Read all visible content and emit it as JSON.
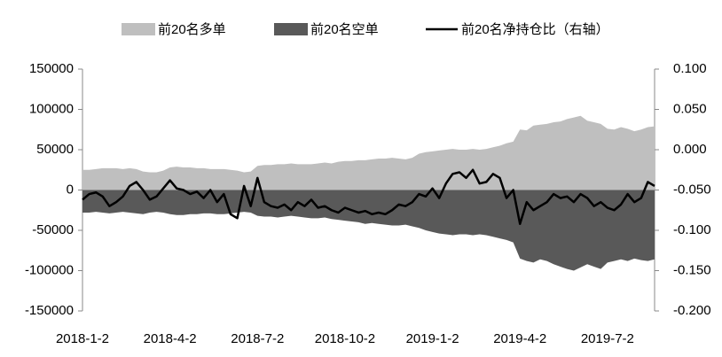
{
  "chart_data": {
    "type": "area_line",
    "categories": [
      "2018-1-2",
      null,
      null,
      null,
      null,
      null,
      null,
      null,
      null,
      null,
      null,
      null,
      null,
      "2018-4-2",
      null,
      null,
      null,
      null,
      null,
      null,
      null,
      null,
      null,
      null,
      null,
      null,
      "2018-7-2",
      null,
      null,
      null,
      null,
      null,
      null,
      null,
      null,
      null,
      null,
      null,
      null,
      "2018-10-2",
      null,
      null,
      null,
      null,
      null,
      null,
      null,
      null,
      null,
      null,
      null,
      null,
      "2019-1-2",
      null,
      null,
      null,
      null,
      null,
      null,
      null,
      null,
      null,
      null,
      null,
      null,
      "2019-4-2",
      null,
      null,
      null,
      null,
      null,
      null,
      null,
      null,
      null,
      null,
      null,
      null,
      "2019-7-2",
      null,
      null,
      null,
      null,
      null,
      null,
      null
    ],
    "ylim": [
      -150000,
      150000
    ],
    "yticks": [
      -150000,
      -100000,
      -50000,
      0,
      50000,
      100000,
      150000
    ],
    "y2lim": [
      -0.2,
      0.1
    ],
    "y2ticks": [
      {
        "value": -0.2,
        "label": "-0.200"
      },
      {
        "value": -0.15,
        "label": "-0.150"
      },
      {
        "value": -0.1,
        "label": "-0.100"
      },
      {
        "value": -0.05,
        "label": "-0.050"
      },
      {
        "value": 0,
        "label": "0.000"
      },
      {
        "value": 0.05,
        "label": "0.050"
      },
      {
        "value": 0.1,
        "label": "0.100"
      }
    ],
    "legend": "top",
    "series": [
      {
        "name": "前20名多单",
        "color": "#bfbfbf",
        "kind": "area",
        "values": [
          25000,
          25000,
          26000,
          27000,
          27000,
          27000,
          26000,
          27000,
          26000,
          23000,
          22000,
          22000,
          24000,
          28000,
          29000,
          28000,
          28000,
          27000,
          27000,
          26000,
          26000,
          26000,
          25000,
          24000,
          22000,
          23000,
          30000,
          31000,
          31000,
          32000,
          32000,
          33000,
          32000,
          32000,
          32000,
          33000,
          34000,
          33000,
          35000,
          36000,
          36000,
          37000,
          37000,
          38000,
          39000,
          39000,
          40000,
          39000,
          38000,
          40000,
          45000,
          47000,
          48000,
          49000,
          50000,
          51000,
          50000,
          50000,
          51000,
          50000,
          51000,
          53000,
          55000,
          58000,
          60000,
          75000,
          74000,
          80000,
          81000,
          82000,
          84000,
          85000,
          88000,
          90000,
          92000,
          86000,
          84000,
          82000,
          76000,
          75000,
          78000,
          76000,
          73000,
          75000,
          78000,
          79000
        ]
      },
      {
        "name": "前20名空单",
        "color": "#595959",
        "kind": "area",
        "values": [
          -28000,
          -28000,
          -27000,
          -28000,
          -29000,
          -28000,
          -27000,
          -28000,
          -29000,
          -30000,
          -28000,
          -27000,
          -28000,
          -30000,
          -31000,
          -31000,
          -30000,
          -30000,
          -29000,
          -29000,
          -30000,
          -30000,
          -29000,
          -28000,
          -27000,
          -28000,
          -32000,
          -33000,
          -33000,
          -34000,
          -33000,
          -32000,
          -33000,
          -34000,
          -35000,
          -35000,
          -34000,
          -36000,
          -37000,
          -38000,
          -39000,
          -40000,
          -42000,
          -41000,
          -42000,
          -43000,
          -44000,
          -44000,
          -43000,
          -45000,
          -47000,
          -50000,
          -52000,
          -54000,
          -55000,
          -56000,
          -55000,
          -55000,
          -56000,
          -55000,
          -56000,
          -58000,
          -60000,
          -62000,
          -65000,
          -85000,
          -88000,
          -90000,
          -86000,
          -88000,
          -92000,
          -95000,
          -98000,
          -100000,
          -96000,
          -92000,
          -95000,
          -98000,
          -90000,
          -88000,
          -86000,
          -88000,
          -85000,
          -87000,
          -88000,
          -86000
        ]
      },
      {
        "name": "前20名净持仓比（右轴）",
        "color": "#000000",
        "kind": "line",
        "axis": "y2",
        "values": [
          -0.062,
          -0.055,
          -0.053,
          -0.058,
          -0.07,
          -0.065,
          -0.058,
          -0.045,
          -0.04,
          -0.05,
          -0.062,
          -0.058,
          -0.048,
          -0.038,
          -0.048,
          -0.05,
          -0.055,
          -0.052,
          -0.06,
          -0.05,
          -0.065,
          -0.055,
          -0.08,
          -0.085,
          -0.045,
          -0.07,
          -0.035,
          -0.065,
          -0.07,
          -0.072,
          -0.068,
          -0.075,
          -0.065,
          -0.07,
          -0.062,
          -0.072,
          -0.07,
          -0.075,
          -0.078,
          -0.072,
          -0.075,
          -0.078,
          -0.076,
          -0.08,
          -0.078,
          -0.08,
          -0.075,
          -0.068,
          -0.07,
          -0.065,
          -0.055,
          -0.058,
          -0.048,
          -0.06,
          -0.042,
          -0.03,
          -0.028,
          -0.035,
          -0.025,
          -0.042,
          -0.04,
          -0.03,
          -0.035,
          -0.06,
          -0.05,
          -0.092,
          -0.065,
          -0.075,
          -0.07,
          -0.065,
          -0.055,
          -0.06,
          -0.058,
          -0.065,
          -0.055,
          -0.06,
          -0.07,
          -0.065,
          -0.072,
          -0.075,
          -0.068,
          -0.055,
          -0.065,
          -0.06,
          -0.04,
          -0.045
        ]
      }
    ]
  }
}
